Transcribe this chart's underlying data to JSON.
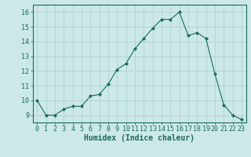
{
  "x": [
    0,
    1,
    2,
    3,
    4,
    5,
    6,
    7,
    8,
    9,
    10,
    11,
    12,
    13,
    14,
    15,
    16,
    17,
    18,
    19,
    20,
    21,
    22,
    23
  ],
  "y": [
    10.0,
    9.0,
    9.0,
    9.4,
    9.6,
    9.6,
    10.3,
    10.4,
    11.1,
    12.1,
    12.5,
    13.5,
    14.2,
    14.9,
    15.5,
    15.5,
    16.0,
    14.4,
    14.6,
    14.2,
    11.8,
    9.7,
    9.0,
    8.7
  ],
  "line_color": "#1a6b5a",
  "marker": "D",
  "marker_size": 2.0,
  "bg_color": "#cce8e8",
  "grid_color": "#aacfcf",
  "xlabel": "Humidex (Indice chaleur)",
  "ylim": [
    8.5,
    16.5
  ],
  "xlim": [
    -0.5,
    23.5
  ],
  "yticks": [
    9,
    10,
    11,
    12,
    13,
    14,
    15,
    16
  ],
  "xticks": [
    0,
    1,
    2,
    3,
    4,
    5,
    6,
    7,
    8,
    9,
    10,
    11,
    12,
    13,
    14,
    15,
    16,
    17,
    18,
    19,
    20,
    21,
    22,
    23
  ],
  "tick_color": "#1a6b5a",
  "label_fontsize": 7,
  "tick_fontsize": 6,
  "linewidth": 0.8
}
